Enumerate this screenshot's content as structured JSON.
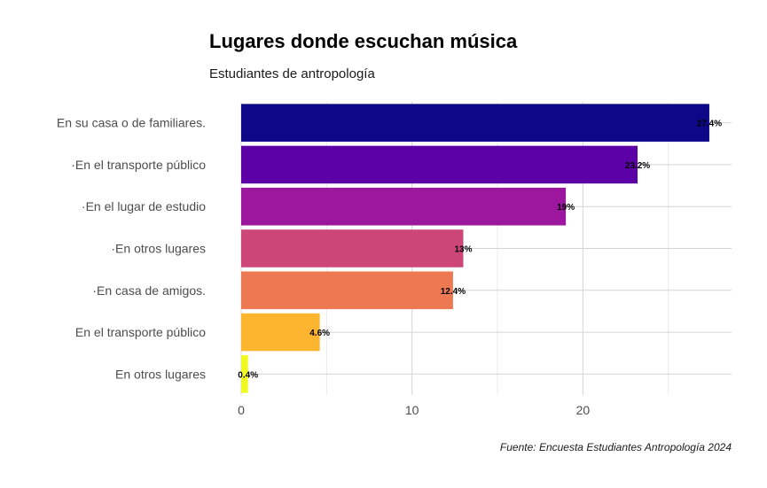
{
  "title": "Lugares donde escuchan música",
  "subtitle": "Estudiantes de antropología",
  "caption": "Fuente: Encuesta Estudiantes Antropología 2024",
  "chart_data": {
    "type": "bar",
    "orientation": "horizontal",
    "categories": [
      "En su casa o de familiares.",
      "·En el transporte público",
      "·En el lugar de estudio",
      "·En otros lugares",
      "·En casa de amigos.",
      "En el transporte público",
      "En otros lugares"
    ],
    "values": [
      27.4,
      23.2,
      19,
      13,
      12.4,
      4.6,
      0.4
    ],
    "labels": [
      "27.4%",
      "23.2%",
      "19%",
      "13%",
      "12.4%",
      "4.6%",
      "0.4%"
    ],
    "colors": [
      "#0d0887",
      "#5c01a6",
      "#9c179e",
      "#cc4778",
      "#ed7953",
      "#fdb42f",
      "#f0f921"
    ],
    "x_ticks": [
      0,
      10,
      20
    ],
    "xlim": [
      0,
      28.7
    ],
    "grid": true,
    "legend": "none"
  }
}
